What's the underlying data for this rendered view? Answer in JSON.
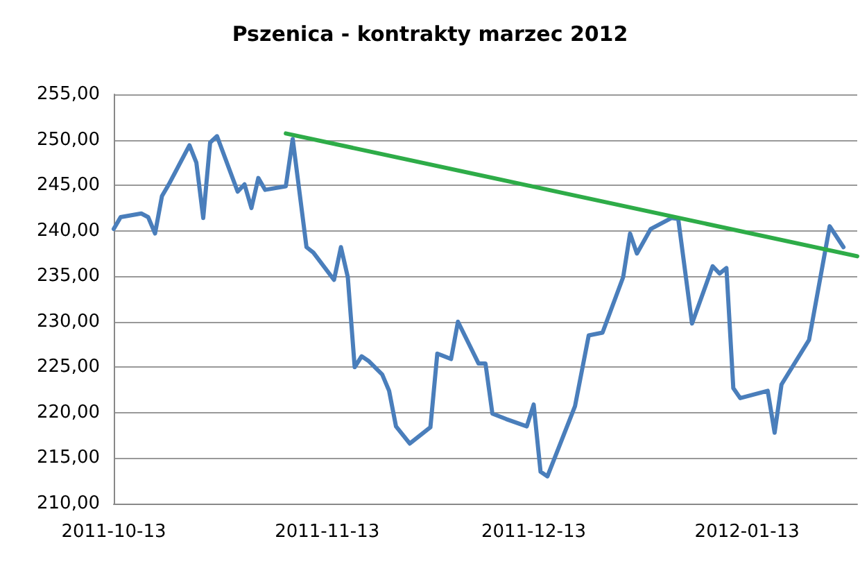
{
  "chart_data": {
    "type": "line",
    "title": "Pszenica - kontrakty marzec 2012",
    "xlim": [
      "2011-10-13",
      "2012-01-29"
    ],
    "xticks": [
      "2011-10-13",
      "2011-11-13",
      "2011-12-13",
      "2012-01-13"
    ],
    "ylim": [
      210,
      255
    ],
    "yticks": [
      {
        "value": 210,
        "label": "210,00"
      },
      {
        "value": 215,
        "label": "215,00"
      },
      {
        "value": 220,
        "label": "220,00"
      },
      {
        "value": 225,
        "label": "225,00"
      },
      {
        "value": 230,
        "label": "230,00"
      },
      {
        "value": 235,
        "label": "235,00"
      },
      {
        "value": 240,
        "label": "240,00"
      },
      {
        "value": 245,
        "label": "245,00"
      },
      {
        "value": 250,
        "label": "250,00"
      },
      {
        "value": 255,
        "label": "255,00"
      }
    ],
    "grid": "y",
    "marker": "none",
    "line_style": "solid",
    "series": [
      {
        "color": "#4a7ebb",
        "x": [
          "2011-10-13",
          "2011-10-14",
          "2011-10-17",
          "2011-10-18",
          "2011-10-19",
          "2011-10-20",
          "2011-10-21",
          "2011-10-24",
          "2011-10-25",
          "2011-10-26",
          "2011-10-27",
          "2011-10-28",
          "2011-10-31",
          "2011-11-01",
          "2011-11-02",
          "2011-11-03",
          "2011-11-04",
          "2011-11-07",
          "2011-11-08",
          "2011-11-10",
          "2011-11-11",
          "2011-11-14",
          "2011-11-15",
          "2011-11-16",
          "2011-11-17",
          "2011-11-18",
          "2011-11-19",
          "2011-11-21",
          "2011-11-22",
          "2011-11-23",
          "2011-11-25",
          "2011-11-28",
          "2011-11-29",
          "2011-12-01",
          "2011-12-02",
          "2011-12-05",
          "2011-12-06",
          "2011-12-07",
          "2011-12-09",
          "2011-12-12",
          "2011-12-13",
          "2011-12-14",
          "2011-12-15",
          "2011-12-19",
          "2011-12-21",
          "2011-12-23",
          "2011-12-26",
          "2011-12-27",
          "2011-12-28",
          "2011-12-30",
          "2012-01-02",
          "2012-01-03",
          "2012-01-05",
          "2012-01-08",
          "2012-01-09",
          "2012-01-10",
          "2012-01-11",
          "2012-01-12",
          "2012-01-16",
          "2012-01-17",
          "2012-01-18",
          "2012-01-22",
          "2012-01-25",
          "2012-01-27"
        ],
        "values": [
          240.2,
          241.5,
          241.9,
          241.5,
          239.7,
          243.8,
          245.1,
          249.4,
          247.5,
          241.4,
          249.7,
          250.4,
          244.3,
          245.1,
          242.5,
          245.8,
          244.5,
          244.9,
          250.1,
          238.2,
          237.6,
          234.6,
          238.2,
          234.9,
          225.0,
          226.2,
          225.7,
          224.2,
          222.4,
          218.5,
          216.6,
          218.4,
          226.5,
          225.9,
          230.0,
          225.4,
          225.4,
          219.9,
          219.3,
          218.5,
          220.9,
          213.5,
          213.0,
          220.7,
          228.5,
          228.8,
          234.9,
          239.7,
          237.5,
          240.2,
          241.4,
          241.3,
          229.8,
          236.1,
          235.3,
          235.9,
          222.7,
          221.6,
          222.4,
          217.8,
          223.1,
          228.0,
          240.5,
          238.2
        ]
      },
      {
        "color": "#2eac48",
        "x": [
          "2011-11-07",
          "2012-01-29"
        ],
        "values": [
          250.7,
          237.2
        ]
      }
    ]
  }
}
